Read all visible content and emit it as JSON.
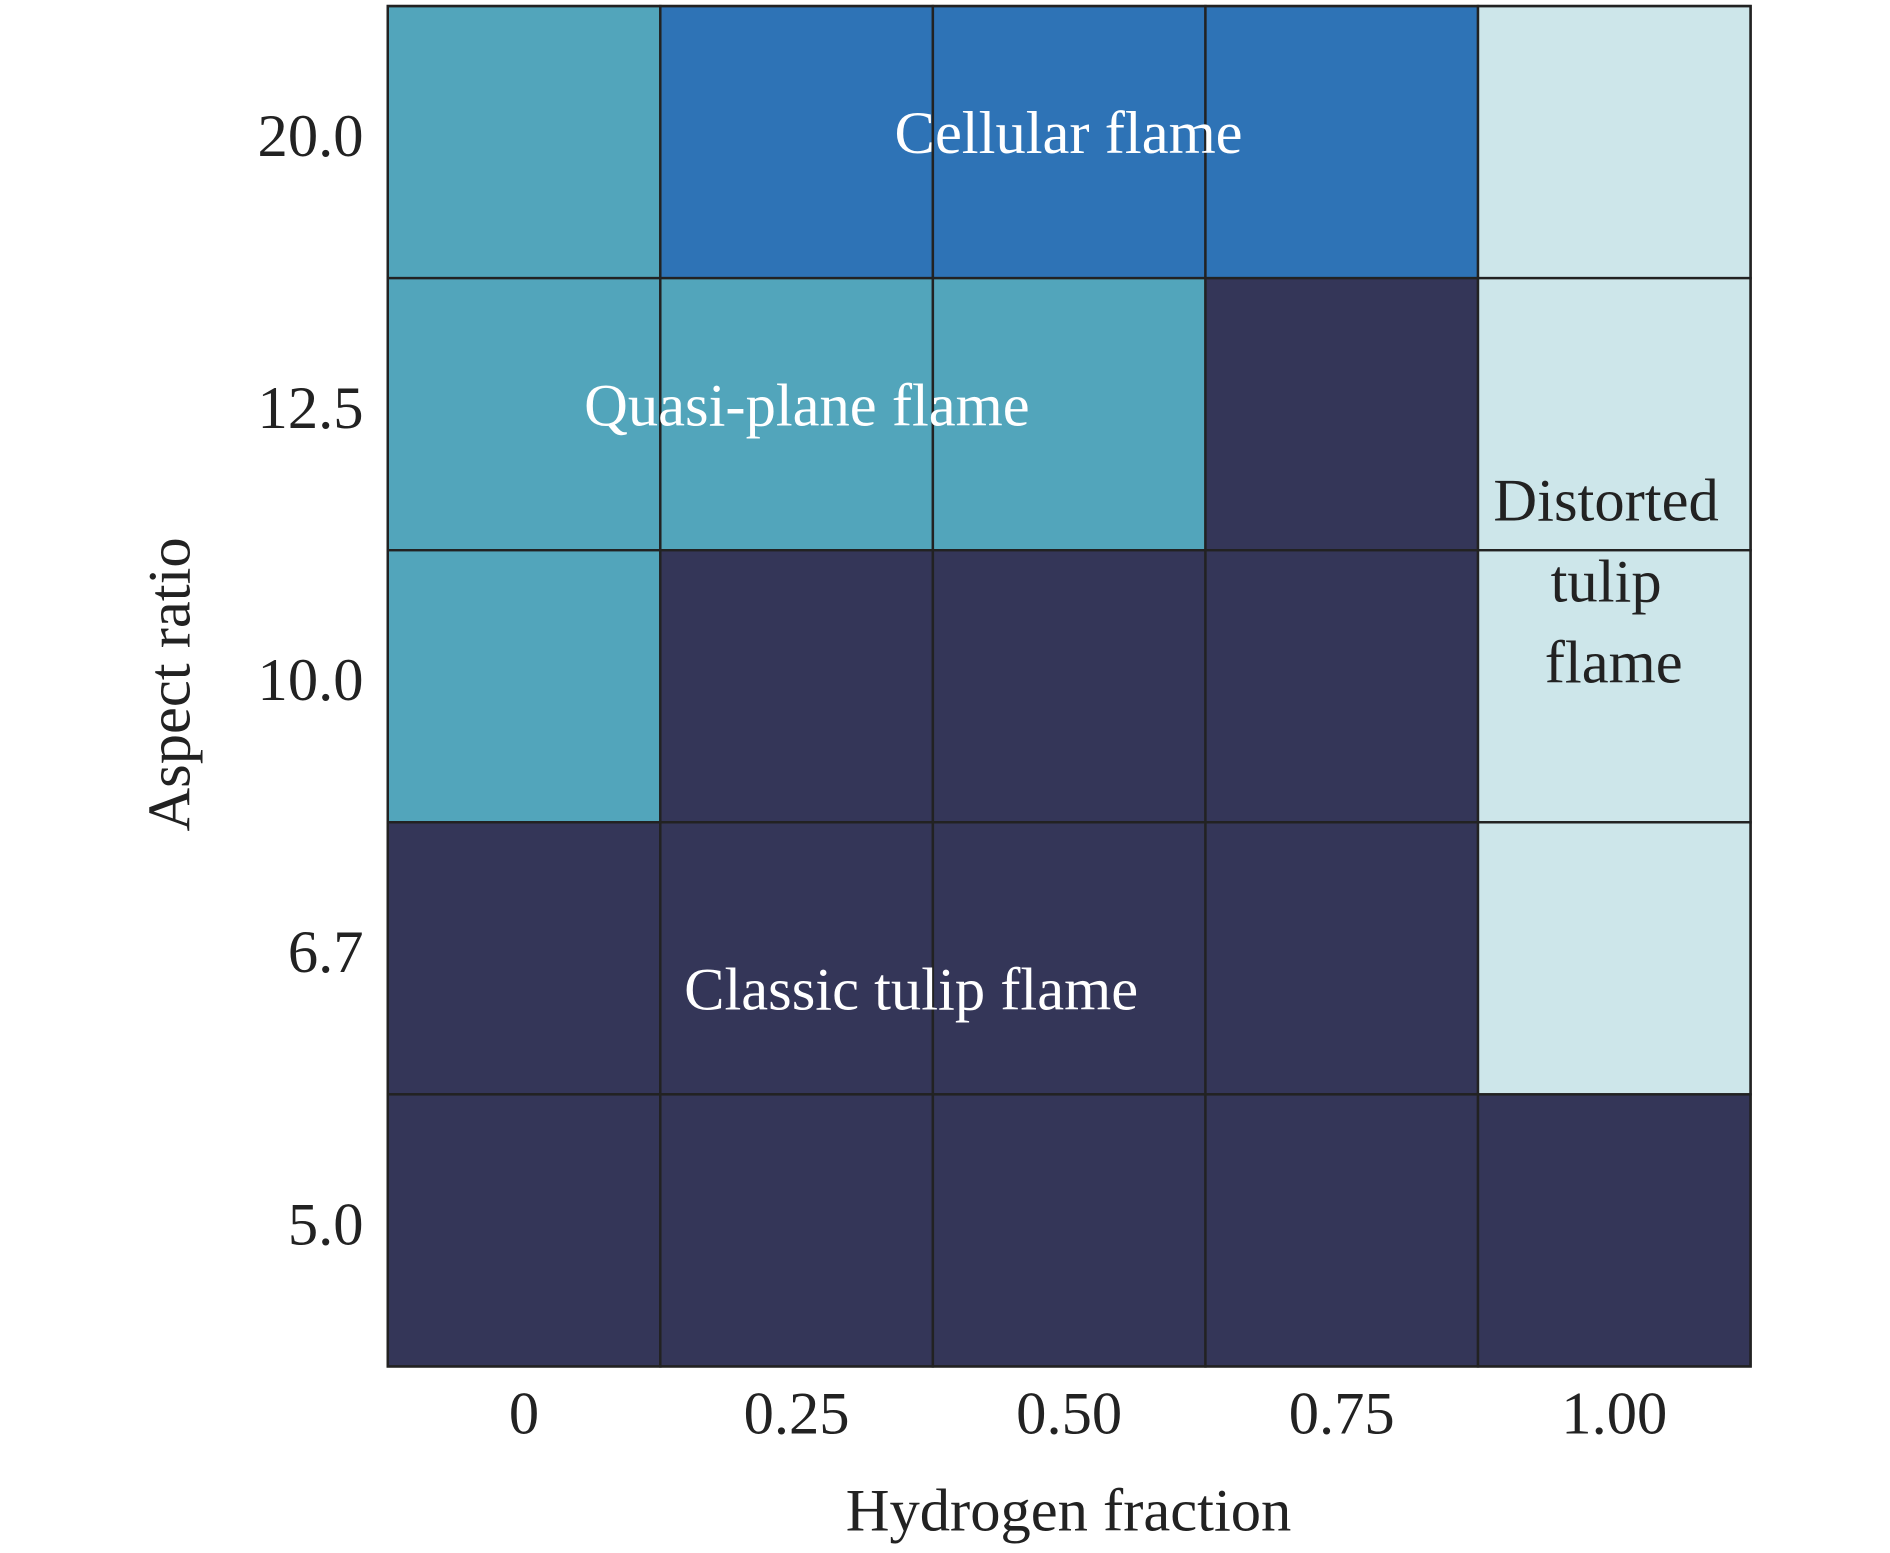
{
  "chart_data": {
    "type": "regime-map",
    "x_label": "Hydrogen fraction",
    "y_label": "Aspect ratio",
    "x_categories": [
      "0",
      "0.25",
      "0.50",
      "0.75",
      "1.00"
    ],
    "y_categories": [
      "20.0",
      "12.5",
      "10.0",
      "6.7",
      "5.0"
    ],
    "regimes": [
      {
        "name": "Cellular flame",
        "color": "#2e73b6",
        "label_color": "#ffffff"
      },
      {
        "name": "Quasi-plane flame",
        "color": "#52a5bb",
        "label_color": "#ffffff"
      },
      {
        "name": "Classic tulip flame",
        "color": "#343658",
        "label_color": "#ffffff"
      },
      {
        "name": "Distorted tulip flame",
        "color": "#cde6ea",
        "label_color": "#222222"
      }
    ],
    "grid": [
      [
        "Quasi-plane flame",
        "Cellular flame",
        "Cellular flame",
        "Cellular flame",
        "Distorted tulip flame"
      ],
      [
        "Quasi-plane flame",
        "Quasi-plane flame",
        "Quasi-plane flame",
        "Classic tulip flame",
        "Distorted tulip flame"
      ],
      [
        "Quasi-plane flame",
        "Classic tulip flame",
        "Classic tulip flame",
        "Classic tulip flame",
        "Distorted tulip flame"
      ],
      [
        "Classic tulip flame",
        "Classic tulip flame",
        "Classic tulip flame",
        "Classic tulip flame",
        "Distorted tulip flame"
      ],
      [
        "Classic tulip flame",
        "Classic tulip flame",
        "Classic tulip flame",
        "Classic tulip flame",
        "Classic tulip flame"
      ]
    ]
  }
}
